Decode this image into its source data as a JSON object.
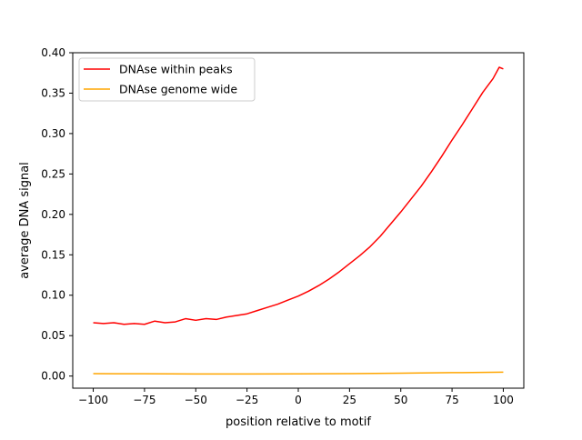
{
  "chart_data": {
    "type": "line",
    "title": "",
    "xlabel": "position relative to motif",
    "ylabel": "average DNA signal",
    "xlim": [
      -110,
      110
    ],
    "ylim": [
      -0.015,
      0.4
    ],
    "xticks": [
      -100,
      -75,
      -50,
      -25,
      0,
      25,
      50,
      75,
      100
    ],
    "xtick_labels": [
      "−100",
      "−75",
      "−50",
      "−25",
      "0",
      "25",
      "50",
      "75",
      "100"
    ],
    "yticks": [
      0.0,
      0.05,
      0.1,
      0.15,
      0.2,
      0.25,
      0.3,
      0.35,
      0.4
    ],
    "ytick_labels": [
      "0.00",
      "0.05",
      "0.10",
      "0.15",
      "0.20",
      "0.25",
      "0.30",
      "0.35",
      "0.40"
    ],
    "grid": false,
    "legend_position": "top-left",
    "series": [
      {
        "name": "DNAse within peaks",
        "color": "#ff0000",
        "x": [
          -100,
          -95,
          -90,
          -85,
          -80,
          -75,
          -70,
          -65,
          -60,
          -55,
          -50,
          -45,
          -40,
          -35,
          -30,
          -25,
          -20,
          -15,
          -10,
          -5,
          0,
          5,
          10,
          15,
          20,
          25,
          30,
          35,
          40,
          45,
          50,
          55,
          60,
          65,
          70,
          75,
          80,
          85,
          90,
          95,
          98,
          100
        ],
        "y": [
          0.066,
          0.065,
          0.066,
          0.064,
          0.065,
          0.064,
          0.068,
          0.066,
          0.067,
          0.071,
          0.069,
          0.071,
          0.07,
          0.073,
          0.075,
          0.077,
          0.081,
          0.085,
          0.089,
          0.094,
          0.099,
          0.105,
          0.112,
          0.12,
          0.129,
          0.139,
          0.149,
          0.16,
          0.173,
          0.188,
          0.203,
          0.219,
          0.235,
          0.253,
          0.272,
          0.292,
          0.311,
          0.331,
          0.351,
          0.368,
          0.382,
          0.38
        ]
      },
      {
        "name": "DNAse genome wide",
        "color": "#ffa500",
        "x": [
          -100,
          -75,
          -50,
          -25,
          0,
          25,
          50,
          75,
          100
        ],
        "y": [
          0.003,
          0.0028,
          0.0026,
          0.0026,
          0.0027,
          0.003,
          0.0036,
          0.0042,
          0.0048
        ]
      }
    ]
  }
}
